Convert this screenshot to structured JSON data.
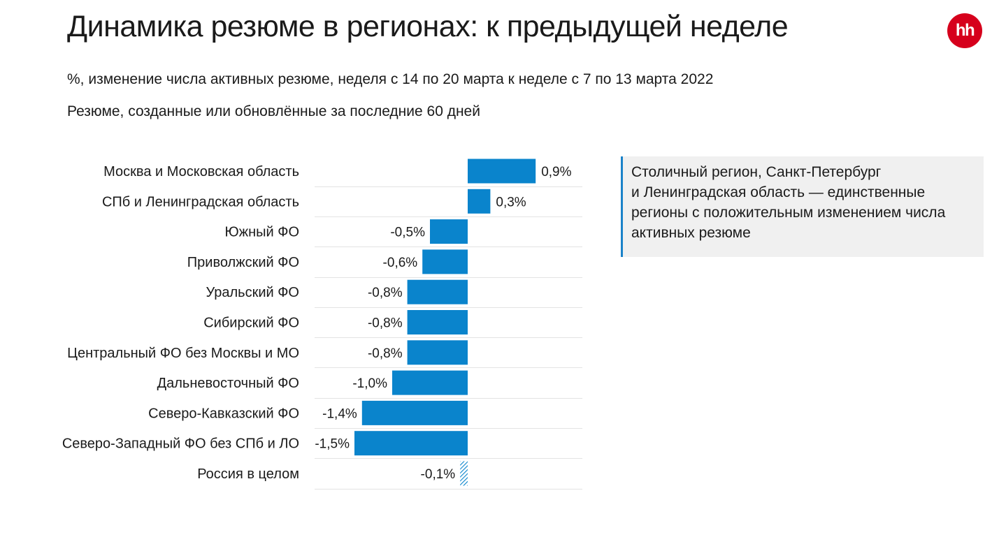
{
  "title": "Динамика резюме в регионах: к предыдущей неделе",
  "subtitle": "%, изменение числа активных резюме, неделя с 14 по 20 марта к неделе с 7 по 13 марта 2022",
  "subtitle2": "Резюме, созданные или обновлённые за последние 60 дней",
  "logo": "hh",
  "note_lines": [
    "Столичный регион, Санкт-Петербург",
    "и Ленинградская область — единственные",
    "регионы с положительным изменением числа",
    "активных резюме"
  ],
  "colors": {
    "bar": "#0a84cc",
    "hatch": "#0a84cc",
    "grid": "#e3e3e3",
    "logo": "#d6001c"
  },
  "chart_data": {
    "type": "bar",
    "orientation": "horizontal",
    "categories": [
      "Москва и Московская область",
      "СПб и Ленинградская область",
      "Южный ФО",
      "Приволжский ФО",
      "Уральский ФО",
      "Сибирский ФО",
      "Центральный ФО без Москвы и МО",
      "Дальневосточный ФО",
      "Северо-Кавказский ФО",
      "Северо-Западный ФО без СПб и ЛО",
      "Россия в целом"
    ],
    "values": [
      0.9,
      0.3,
      -0.5,
      -0.6,
      -0.8,
      -0.8,
      -0.8,
      -1.0,
      -1.4,
      -1.5,
      -0.1
    ],
    "labels": [
      "0,9%",
      "0,3%",
      "-0,5%",
      "-0,6%",
      "-0,8%",
      "-0,8%",
      "-0,8%",
      "-1,0%",
      "-1,4%",
      "-1,5%",
      "-0,1%"
    ],
    "styles": [
      "solid",
      "solid",
      "solid",
      "solid",
      "solid",
      "solid",
      "solid",
      "solid",
      "solid",
      "solid",
      "hatched"
    ],
    "title": "",
    "xlabel": "",
    "ylabel": "",
    "unit": "%",
    "grid": true,
    "legend": "none"
  }
}
